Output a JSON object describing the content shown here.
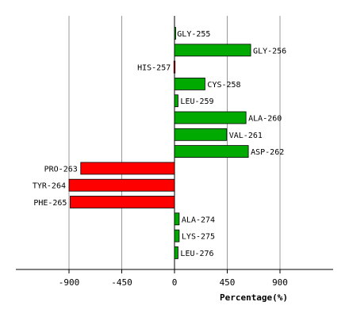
{
  "chart_data": {
    "type": "bar",
    "orientation": "horizontal",
    "xlabel": "Percentage(%)",
    "xlim": [
      -1350,
      1350
    ],
    "xticks": [
      -900,
      -450,
      0,
      450,
      900
    ],
    "xtick_labels": [
      "-900",
      "-450",
      "0",
      "450",
      "900"
    ],
    "grid": true,
    "categories": [
      "GLY-255",
      "GLY-256",
      "HIS-257",
      "CYS-258",
      "LEU-259",
      "ALA-260",
      "VAL-261",
      "ASP-262",
      "PRO-263",
      "TYR-264",
      "PHE-265",
      "ALA-274",
      "LYS-275",
      "LEU-276"
    ],
    "values": [
      2,
      650,
      -5,
      260,
      30,
      610,
      445,
      630,
      -800,
      -900,
      -890,
      40,
      40,
      30
    ],
    "colors": {
      "positive": "#00aa00",
      "negative": "#ff0000",
      "grid": "#999999",
      "axis": "#000000"
    }
  }
}
